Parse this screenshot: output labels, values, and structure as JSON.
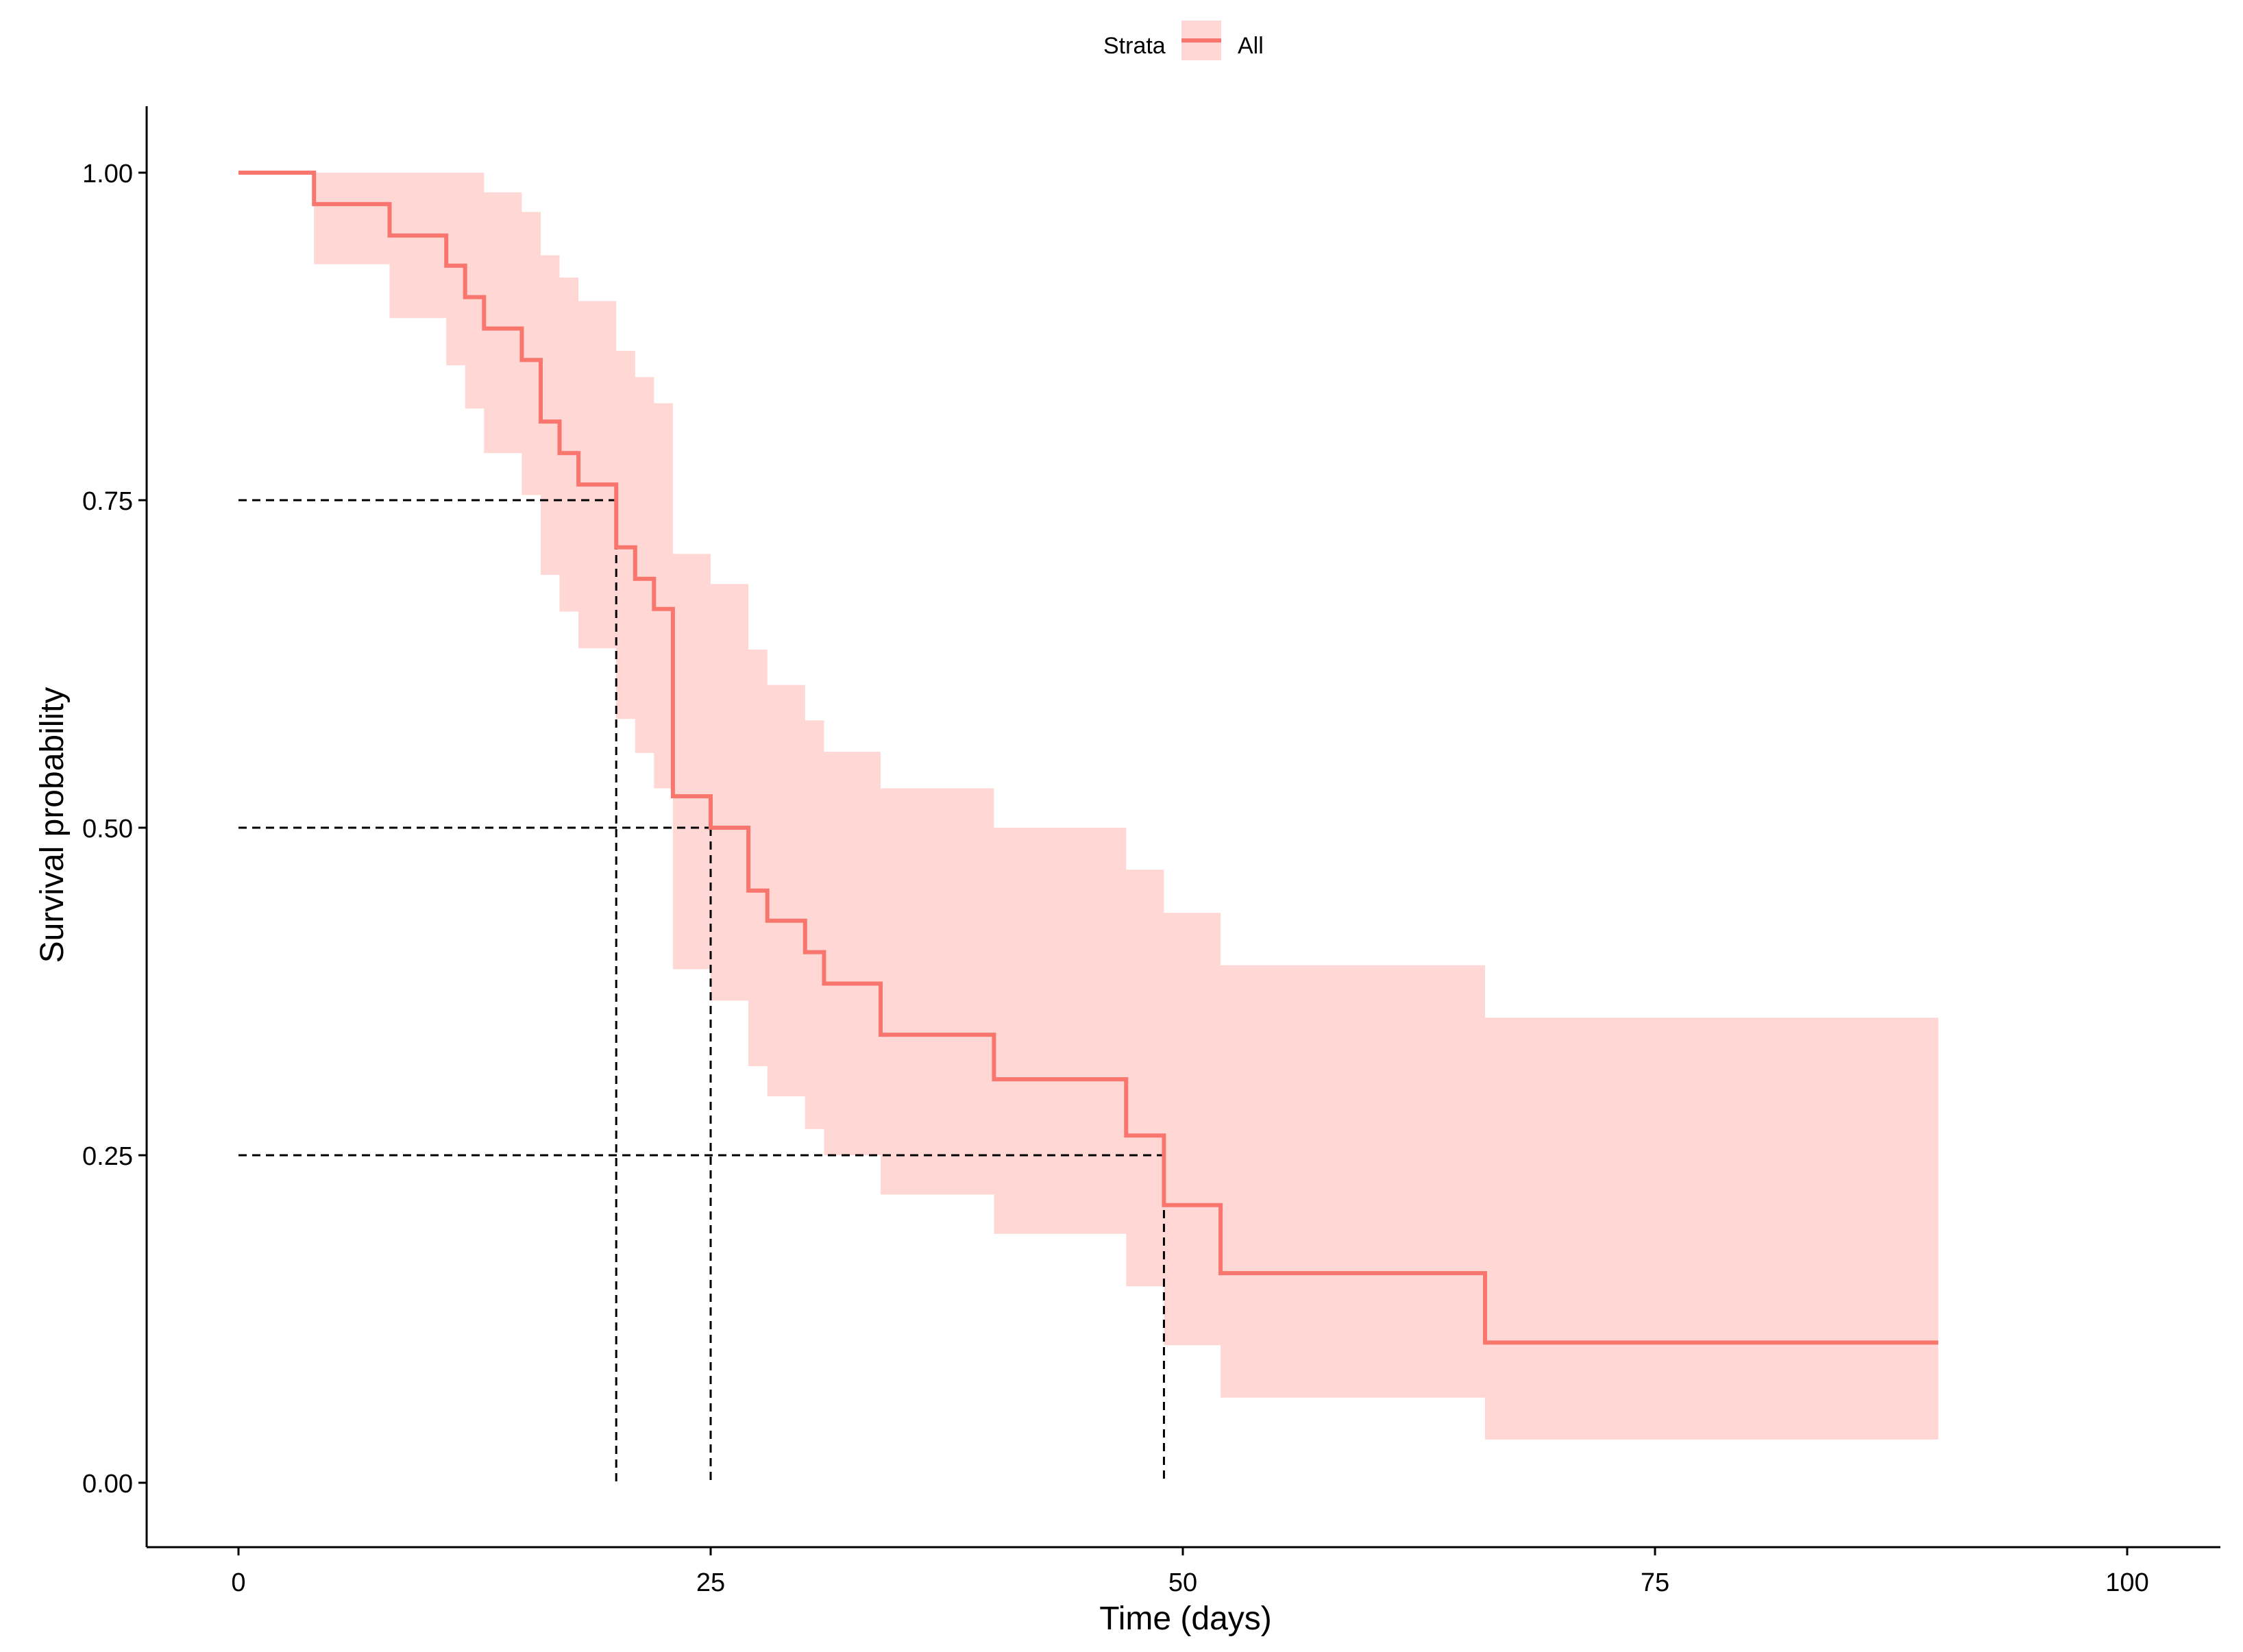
{
  "chart_data": {
    "type": "line",
    "subtype": "kaplan-meier step curve with confidence band",
    "xlabel": "Time (days)",
    "ylabel": "Survival probability",
    "xlim": [
      0,
      100
    ],
    "ylim": [
      0,
      1
    ],
    "x_ticks": [
      0,
      25,
      50,
      75,
      100
    ],
    "x_tick_labels": [
      "0",
      "25",
      "50",
      "75",
      "100"
    ],
    "y_ticks": [
      0,
      0.25,
      0.5,
      0.75,
      1.0
    ],
    "y_tick_labels": [
      "0.00",
      "0.25",
      "0.50",
      "0.75",
      "1.00"
    ],
    "grid": false,
    "legend": {
      "position": "top",
      "title": "Strata",
      "items": [
        {
          "label": "All",
          "color": "#F8766D"
        }
      ]
    },
    "series": [
      {
        "name": "All",
        "color": "#F8766D",
        "band_color": "#FFD7D4",
        "steps": [
          {
            "x": 0,
            "y": 1.0,
            "lower": 1.0,
            "upper": 1.0
          },
          {
            "x": 4,
            "y": 0.976,
            "lower": 0.93,
            "upper": 1.0
          },
          {
            "x": 8,
            "y": 0.952,
            "lower": 0.889,
            "upper": 1.0
          },
          {
            "x": 11,
            "y": 0.929,
            "lower": 0.853,
            "upper": 1.0
          },
          {
            "x": 12,
            "y": 0.905,
            "lower": 0.82,
            "upper": 1.0
          },
          {
            "x": 13,
            "y": 0.881,
            "lower": 0.786,
            "upper": 0.985
          },
          {
            "x": 15,
            "y": 0.857,
            "lower": 0.754,
            "upper": 0.97
          },
          {
            "x": 16,
            "y": 0.81,
            "lower": 0.693,
            "upper": 0.937
          },
          {
            "x": 17,
            "y": 0.786,
            "lower": 0.665,
            "upper": 0.92
          },
          {
            "x": 18,
            "y": 0.762,
            "lower": 0.637,
            "upper": 0.902
          },
          {
            "x": 20,
            "y": 0.714,
            "lower": 0.583,
            "upper": 0.864
          },
          {
            "x": 21,
            "y": 0.69,
            "lower": 0.557,
            "upper": 0.844
          },
          {
            "x": 22,
            "y": 0.667,
            "lower": 0.53,
            "upper": 0.824
          },
          {
            "x": 23,
            "y": 0.524,
            "lower": 0.392,
            "upper": 0.709
          },
          {
            "x": 25,
            "y": 0.5,
            "lower": 0.368,
            "upper": 0.686
          },
          {
            "x": 27,
            "y": 0.452,
            "lower": 0.318,
            "upper": 0.636
          },
          {
            "x": 28,
            "y": 0.429,
            "lower": 0.295,
            "upper": 0.609
          },
          {
            "x": 30,
            "y": 0.405,
            "lower": 0.27,
            "upper": 0.582
          },
          {
            "x": 31,
            "y": 0.381,
            "lower": 0.25,
            "upper": 0.558
          },
          {
            "x": 34,
            "y": 0.342,
            "lower": 0.22,
            "upper": 0.53
          },
          {
            "x": 40,
            "y": 0.308,
            "lower": 0.19,
            "upper": 0.5
          },
          {
            "x": 47,
            "y": 0.265,
            "lower": 0.15,
            "upper": 0.468
          },
          {
            "x": 49,
            "y": 0.212,
            "lower": 0.105,
            "upper": 0.435
          },
          {
            "x": 52,
            "y": 0.16,
            "lower": 0.065,
            "upper": 0.395
          },
          {
            "x": 66,
            "y": 0.107,
            "lower": 0.033,
            "upper": 0.355
          },
          {
            "x": 90,
            "y": 0.107,
            "lower": 0.033,
            "upper": 0.355
          }
        ]
      }
    ],
    "annotations": {
      "median_lines": [
        {
          "prob": 0.75,
          "time": 20
        },
        {
          "prob": 0.5,
          "time": 25
        },
        {
          "prob": 0.25,
          "time": 49
        }
      ],
      "line_style": "dashed",
      "line_color": "#000000"
    }
  }
}
